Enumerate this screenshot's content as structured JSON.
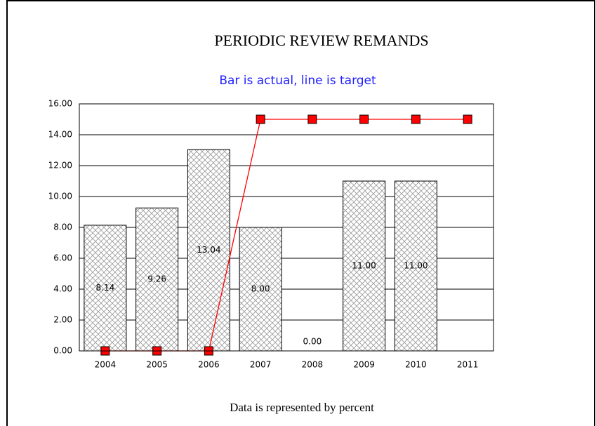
{
  "chart_data": {
    "type": "bar",
    "title": "PERIODIC REVIEW REMANDS",
    "subtitle": "Bar is actual, line is target",
    "footnote": "Data is represented by percent",
    "categories": [
      "2004",
      "2005",
      "2006",
      "2007",
      "2008",
      "2009",
      "2010",
      "2011"
    ],
    "series": [
      {
        "type": "bar",
        "color": "#000000",
        "values": [
          8.14,
          9.26,
          13.04,
          8.0,
          0.0,
          11.0,
          11.0,
          null
        ],
        "value_labels": [
          "8.14",
          "9.26",
          "13.04",
          "8.00",
          "0.00",
          "11.00",
          "11.00",
          null
        ]
      },
      {
        "type": "line",
        "color": "#ff0000",
        "values": [
          0,
          0,
          0,
          15,
          15,
          15,
          15,
          15
        ]
      }
    ],
    "ylim": [
      0,
      16
    ],
    "yticks": [
      {
        "value": 0,
        "label": "0.00"
      },
      {
        "value": 2,
        "label": "2.00"
      },
      {
        "value": 4,
        "label": "4.00"
      },
      {
        "value": 6,
        "label": "6.00"
      },
      {
        "value": 8,
        "label": "8.00"
      },
      {
        "value": 10,
        "label": "10.00"
      },
      {
        "value": 12,
        "label": "12.00"
      },
      {
        "value": 14,
        "label": "14.00"
      },
      {
        "value": 16,
        "label": "16.00"
      }
    ],
    "grid": true
  }
}
